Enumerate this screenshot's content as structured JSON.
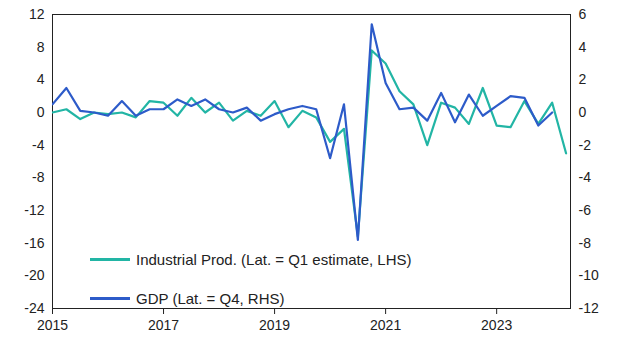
{
  "chart_data": {
    "type": "line",
    "x": [
      2015,
      2015.25,
      2015.5,
      2015.75,
      2016,
      2016.25,
      2016.5,
      2016.75,
      2017,
      2017.25,
      2017.5,
      2017.75,
      2018,
      2018.25,
      2018.5,
      2018.75,
      2019,
      2019.25,
      2019.5,
      2019.75,
      2020,
      2020.25,
      2020.5,
      2020.75,
      2021,
      2021.25,
      2021.5,
      2021.75,
      2022,
      2022.25,
      2022.5,
      2022.75,
      2023,
      2023.25,
      2023.5,
      2023.75,
      2024,
      2024.25
    ],
    "series": [
      {
        "name": "Industrial Prod. (Lat. = Q1 estimate, LHS)",
        "color": "#22b5a5",
        "values": [
          0.0,
          0.4,
          -0.8,
          0.0,
          -0.2,
          0.0,
          -0.6,
          1.4,
          1.2,
          -0.4,
          1.8,
          0.0,
          1.2,
          -1.0,
          0.2,
          -0.4,
          1.4,
          -1.8,
          0.2,
          -0.6,
          -3.6,
          -2.0,
          -15.2,
          7.6,
          6.0,
          2.6,
          1.0,
          -4.0,
          1.2,
          0.6,
          -1.4,
          3.0,
          -1.6,
          -1.8,
          1.4,
          -1.4,
          1.2,
          -5.0
        ]
      },
      {
        "name": "GDP (Lat. = Q4, RHS)",
        "color": "#2d5bc9",
        "axis": "y2",
        "values": [
          0.5,
          1.5,
          0.1,
          0.0,
          -0.2,
          0.7,
          -0.2,
          0.2,
          0.2,
          0.8,
          0.4,
          0.8,
          0.2,
          0.0,
          0.3,
          -0.5,
          -0.1,
          0.2,
          0.4,
          0.2,
          -2.8,
          0.5,
          -7.8,
          5.4,
          1.8,
          0.2,
          0.3,
          -0.5,
          1.2,
          -0.6,
          1.1,
          -0.2,
          0.4,
          1.0,
          0.9,
          -0.8,
          0.0,
          null
        ]
      }
    ],
    "xlim": [
      2015,
      2024.33
    ],
    "xticks": [
      2015,
      2017,
      2019,
      2021,
      2023
    ],
    "ylim": [
      -24,
      12
    ],
    "yticks": [
      -24,
      -20,
      -16,
      -12,
      -8,
      -4,
      0,
      4,
      8,
      12
    ],
    "y2lim": [
      -12,
      6
    ],
    "y2ticks": [
      -12,
      -10,
      -8,
      -6,
      -4,
      -2,
      0,
      2,
      4,
      6
    ],
    "grid": false,
    "legend": "lower-left"
  }
}
